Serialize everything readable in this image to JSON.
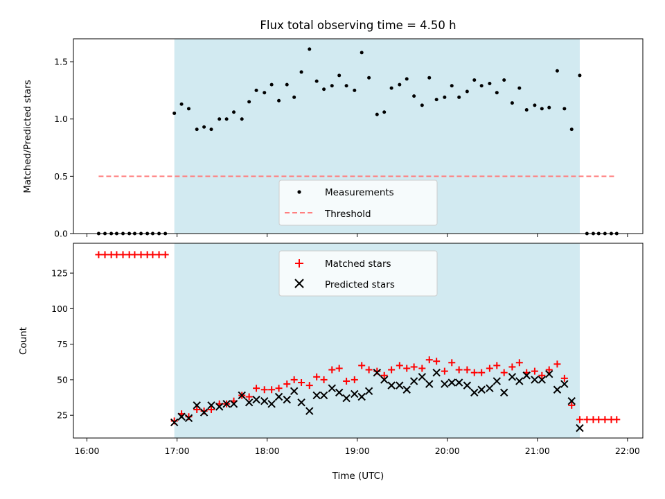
{
  "chart_data": {
    "title": "Flux total observing time = 4.50 h",
    "xlabel": "Time (UTC)",
    "x_unit": "hours UTC",
    "xlim": [
      15.85,
      22.17
    ],
    "x_ticks": [
      16,
      17,
      18,
      19,
      20,
      21,
      22
    ],
    "x_tick_labels": [
      "16:00",
      "17:00",
      "18:00",
      "19:00",
      "20:00",
      "21:00",
      "22:00"
    ],
    "observing_window": [
      16.97,
      21.47
    ],
    "observing_window_color": "#add8e6",
    "panels": [
      {
        "type": "scatter",
        "ylabel": "Matched/Predicted stars",
        "ylim": [
          0,
          1.7
        ],
        "y_ticks": [
          0.0,
          0.5,
          1.0,
          1.5
        ],
        "y_tick_labels": [
          "0.0",
          "0.5",
          "1.0",
          "1.5"
        ],
        "legend_position": "lower-center",
        "series": [
          {
            "name": "Measurements",
            "marker": "dot",
            "color": "#000000",
            "x": [
              16.13,
              16.2,
              16.27,
              16.33,
              16.4,
              16.47,
              16.53,
              16.6,
              16.67,
              16.73,
              16.8,
              16.87,
              16.97,
              17.05,
              17.13,
              17.22,
              17.3,
              17.38,
              17.47,
              17.55,
              17.63,
              17.72,
              17.8,
              17.88,
              17.97,
              18.05,
              18.13,
              18.22,
              18.3,
              18.38,
              18.47,
              18.55,
              18.63,
              18.72,
              18.8,
              18.88,
              18.97,
              19.05,
              19.13,
              19.22,
              19.3,
              19.38,
              19.47,
              19.55,
              19.63,
              19.72,
              19.8,
              19.88,
              19.97,
              20.05,
              20.13,
              20.22,
              20.3,
              20.38,
              20.47,
              20.55,
              20.63,
              20.72,
              20.8,
              20.88,
              20.97,
              21.05,
              21.13,
              21.22,
              21.3,
              21.38,
              21.47,
              21.55,
              21.62,
              21.68,
              21.75,
              21.82,
              21.88
            ],
            "y": [
              0,
              0,
              0,
              0,
              0,
              0,
              0,
              0,
              0,
              0,
              0,
              0,
              1.05,
              1.13,
              1.09,
              0.91,
              0.93,
              0.91,
              1.0,
              1.0,
              1.06,
              1.0,
              1.15,
              1.25,
              1.23,
              1.3,
              1.16,
              1.3,
              1.19,
              1.41,
              1.61,
              1.33,
              1.26,
              1.29,
              1.38,
              1.29,
              1.25,
              1.58,
              1.36,
              1.04,
              1.06,
              1.27,
              1.3,
              1.35,
              1.2,
              1.12,
              1.36,
              1.17,
              1.19,
              1.29,
              1.19,
              1.24,
              1.34,
              1.29,
              1.31,
              1.23,
              1.34,
              1.14,
              1.27,
              1.08,
              1.12,
              1.09,
              1.1,
              1.42,
              1.09,
              0.91,
              1.38,
              0,
              0,
              0,
              0,
              0,
              0
            ]
          },
          {
            "name": "Threshold",
            "type": "line",
            "style": "dashed",
            "color": "#ff7f7f",
            "x": [
              16.13,
              21.88
            ],
            "y": [
              0.5,
              0.5
            ]
          }
        ]
      },
      {
        "type": "scatter",
        "ylabel": "Count",
        "ylim": [
          9,
          146
        ],
        "y_ticks": [
          25,
          50,
          75,
          100,
          125
        ],
        "y_tick_labels": [
          "25",
          "50",
          "75",
          "100",
          "125"
        ],
        "legend_position": "upper-center",
        "series": [
          {
            "name": "Matched stars",
            "marker": "plus",
            "color": "#ff0000",
            "x": [
              16.13,
              16.2,
              16.27,
              16.33,
              16.4,
              16.47,
              16.53,
              16.6,
              16.67,
              16.73,
              16.8,
              16.87,
              16.97,
              17.05,
              17.13,
              17.22,
              17.3,
              17.38,
              17.47,
              17.55,
              17.63,
              17.72,
              17.8,
              17.88,
              17.97,
              18.05,
              18.13,
              18.22,
              18.3,
              18.38,
              18.47,
              18.55,
              18.63,
              18.72,
              18.8,
              18.88,
              18.97,
              19.05,
              19.13,
              19.22,
              19.3,
              19.38,
              19.47,
              19.55,
              19.63,
              19.72,
              19.8,
              19.88,
              19.97,
              20.05,
              20.13,
              20.22,
              20.3,
              20.38,
              20.47,
              20.55,
              20.63,
              20.72,
              20.8,
              20.88,
              20.97,
              21.05,
              21.13,
              21.22,
              21.3,
              21.38,
              21.47,
              21.55,
              21.62,
              21.68,
              21.75,
              21.82,
              21.88
            ],
            "y": [
              138,
              138,
              138,
              138,
              138,
              138,
              138,
              138,
              138,
              138,
              138,
              138,
              21,
              26,
              24,
              29,
              28,
              29,
              33,
              33,
              35,
              39,
              38,
              44,
              43,
              43,
              44,
              47,
              50,
              48,
              46,
              52,
              50,
              57,
              58,
              49,
              50,
              60,
              57,
              56,
              53,
              57,
              60,
              58,
              59,
              58,
              64,
              63,
              56,
              62,
              57,
              57,
              55,
              55,
              58,
              60,
              55,
              59,
              62,
              55,
              56,
              53,
              57,
              61,
              51,
              32,
              22,
              22,
              22,
              22,
              22,
              22,
              22
            ]
          },
          {
            "name": "Predicted stars",
            "marker": "x",
            "color": "#000000",
            "x": [
              16.97,
              17.05,
              17.13,
              17.22,
              17.3,
              17.38,
              17.47,
              17.55,
              17.63,
              17.72,
              17.8,
              17.88,
              17.97,
              18.05,
              18.13,
              18.22,
              18.3,
              18.38,
              18.47,
              18.55,
              18.63,
              18.72,
              18.8,
              18.88,
              18.97,
              19.05,
              19.13,
              19.22,
              19.3,
              19.38,
              19.47,
              19.55,
              19.63,
              19.72,
              19.8,
              19.88,
              19.97,
              20.05,
              20.13,
              20.22,
              20.3,
              20.38,
              20.47,
              20.55,
              20.63,
              20.72,
              20.8,
              20.88,
              20.97,
              21.05,
              21.13,
              21.22,
              21.3,
              21.38,
              21.47
            ],
            "y": [
              20,
              24,
              23,
              32,
              27,
              32,
              31,
              33,
              33,
              39,
              34,
              36,
              35,
              33,
              38,
              36,
              42,
              34,
              28,
              39,
              39,
              44,
              41,
              37,
              40,
              38,
              42,
              55,
              50,
              46,
              46,
              43,
              49,
              52,
              47,
              55,
              47,
              48,
              48,
              46,
              41,
              43,
              44,
              49,
              41,
              52,
              49,
              53,
              50,
              50,
              54,
              43,
              47,
              35,
              16
            ]
          }
        ]
      }
    ]
  }
}
